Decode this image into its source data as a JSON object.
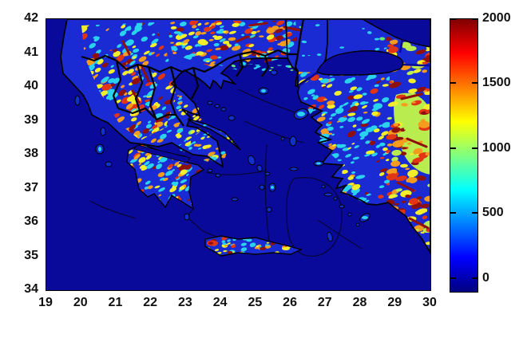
{
  "figure": {
    "background": "#ffffff",
    "title": ""
  },
  "axes": {
    "x_ticks": [
      "19",
      "20",
      "21",
      "22",
      "23",
      "24",
      "25",
      "26",
      "27",
      "28",
      "29",
      "30"
    ],
    "y_ticks": [
      "42",
      "41",
      "40",
      "39",
      "38",
      "37",
      "36",
      "35",
      "34"
    ],
    "xlim": [
      19,
      30
    ],
    "ylim": [
      34,
      42
    ]
  },
  "colorbar": {
    "tick_labels": [
      "2000",
      "1500",
      "1000",
      "500",
      "0"
    ],
    "tick_values": [
      2000,
      1500,
      1000,
      500,
      0
    ],
    "clim": [
      -100,
      2000
    ],
    "colormap": "jet"
  },
  "palette": {
    "sea": "#0a0a9a",
    "lowland": "#1a2bd4",
    "island": "#1230cc",
    "cyan": "#29d3ee",
    "green": "#5fe77a",
    "yellow_green": "#b9ec4e",
    "yellow": "#f2ef2a",
    "orange": "#f59b1e",
    "red": "#e23515",
    "dark_red": "#8f0f0a",
    "coast_line": "#000000"
  },
  "chart_data": {
    "type": "heatmap",
    "subject": "Topographic elevation map of Greece, the Aegean Sea and western Turkey (MATLAB-style plot, jet colormap)",
    "title": "",
    "xlabel": "",
    "ylabel": "",
    "x_ticks": [
      19,
      20,
      21,
      22,
      23,
      24,
      25,
      26,
      27,
      28,
      29,
      30
    ],
    "y_ticks": [
      34,
      35,
      36,
      37,
      38,
      39,
      40,
      41,
      42
    ],
    "xlim": [
      19,
      30
    ],
    "ylim": [
      34,
      42
    ],
    "colorbar_ticks": [
      0,
      500,
      1000,
      1500,
      2000
    ],
    "clim_estimate": [
      -100,
      2000
    ],
    "colormap": "jet",
    "grid": false,
    "legend": false,
    "regions": [
      {
        "name": "Ionian / Aegean / Mediterranean sea",
        "elevation": "0 m (dark navy blue)"
      },
      {
        "name": "Pindus mountain ridges, NW Greece",
        "elevation": "800-2000 m (yellow/orange/red streaks on cyan)"
      },
      {
        "name": "Rhodope mountains along northern border",
        "elevation": "1000-2000 m (orange/dark-red at top edge)"
      },
      {
        "name": "Thessaly and Macedonia plains",
        "elevation": "0-300 m (blue)"
      },
      {
        "name": "Peloponnese interior",
        "elevation": "500-1800 m (cyan/yellow/orange core)"
      },
      {
        "name": "Crete",
        "elevation": "up to ~2000 m, red patch at western end"
      },
      {
        "name": "Western Anatolia (Turkey)",
        "elevation": "300-1500 m, increasing to 1500-2000 m toward east edge"
      },
      {
        "name": "Thrace / Marmara lowlands",
        "elevation": "0-300 m (blue)"
      },
      {
        "name": "Sea of Marmara and Black Sea corner",
        "elevation": "sea (dark navy, black coast outline)"
      },
      {
        "name": "Thick black lines across north",
        "elevation": "national/administrative borders"
      },
      {
        "name": "Thin dark lines over sea",
        "elevation": "administrative boundary lines"
      }
    ]
  }
}
